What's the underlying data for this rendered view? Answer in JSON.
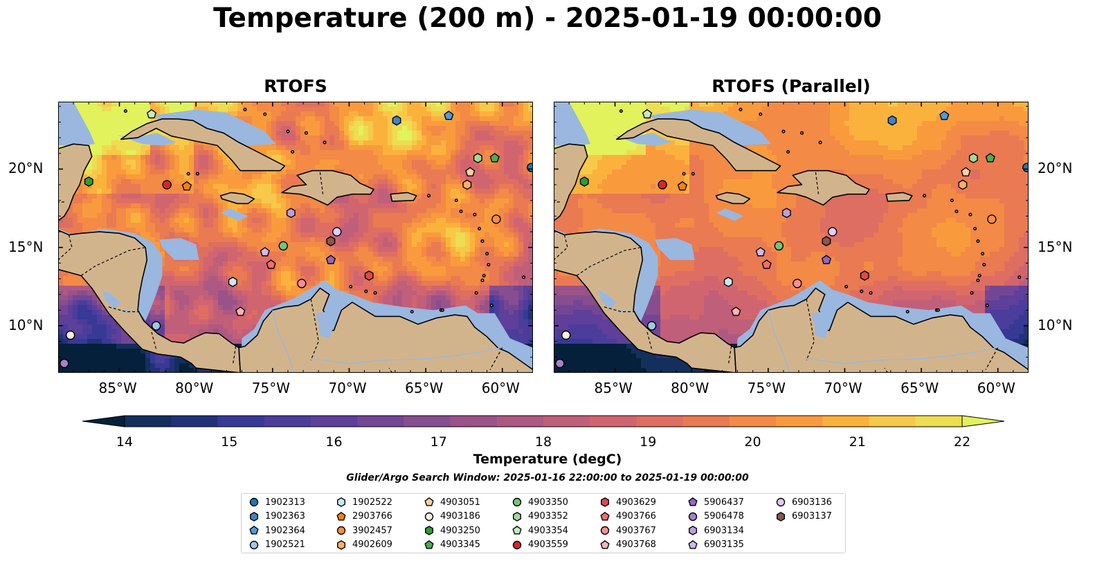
{
  "title": "Temperature (200 m) - 2025-01-19 00:00:00",
  "panels": [
    {
      "title": "RTOFS",
      "variant": "base"
    },
    {
      "title": "RTOFS (Parallel)",
      "variant": "parallel"
    }
  ],
  "x_ticks": [
    "85°W",
    "80°W",
    "75°W",
    "70°W",
    "65°W",
    "60°W"
  ],
  "y_ticks": [
    "20°N",
    "15°N",
    "10°N"
  ],
  "colorbar": {
    "label": "Temperature (degC)",
    "ticks": [
      "14",
      "15",
      "16",
      "17",
      "18",
      "19",
      "20",
      "21",
      "22"
    ],
    "min": 14,
    "max": 22,
    "extend": "both",
    "colormap": "thermal",
    "colors": [
      "#04203a",
      "#132f5c",
      "#22327a",
      "#363a95",
      "#4b3d9b",
      "#5e3f99",
      "#734695",
      "#864e8f",
      "#9a5289",
      "#ad5983",
      "#c05f79",
      "#d1656f",
      "#de6e62",
      "#e97a52",
      "#f38a45",
      "#f99b3d",
      "#fbb23d",
      "#f7c94a",
      "#eddd52",
      "#e2f25c"
    ]
  },
  "subtitle": "Glider/Argo Search Window: 2025-01-16 22:00:00 to 2025-01-19 00:00:00",
  "colors": {
    "land": "#d2b48c",
    "shelf": "#9ab7df",
    "deep_cold": "#04203a"
  },
  "floats": [
    {
      "id": "1902313",
      "marker": "circle",
      "color": "#1f77b4"
    },
    {
      "id": "1902363",
      "marker": "hexagon",
      "color": "#3d85c6"
    },
    {
      "id": "1902364",
      "marker": "pentagon",
      "color": "#4f9bd9"
    },
    {
      "id": "1902521",
      "marker": "circle",
      "color": "#9ecae1"
    },
    {
      "id": "1902522",
      "marker": "hexagon",
      "color": "#c7e9f1"
    },
    {
      "id": "2903766",
      "marker": "pentagon",
      "color": "#ff7f0e"
    },
    {
      "id": "3902457",
      "marker": "circle",
      "color": "#fd8d3c"
    },
    {
      "id": "4902609",
      "marker": "hexagon",
      "color": "#fdae6b"
    },
    {
      "id": "4903051",
      "marker": "pentagon",
      "color": "#fdd0a2"
    },
    {
      "id": "4903186",
      "marker": "circle",
      "color": "#feeddc"
    },
    {
      "id": "4903250",
      "marker": "hexagon",
      "color": "#2ca02c"
    },
    {
      "id": "4903345",
      "marker": "pentagon",
      "color": "#4daf4a"
    },
    {
      "id": "4903350",
      "marker": "circle",
      "color": "#74c476"
    },
    {
      "id": "4903352",
      "marker": "hexagon",
      "color": "#a1d99b"
    },
    {
      "id": "4903354",
      "marker": "pentagon",
      "color": "#c7e9c0"
    },
    {
      "id": "4903559",
      "marker": "circle",
      "color": "#d62728"
    },
    {
      "id": "4903629",
      "marker": "hexagon",
      "color": "#de4a4a"
    },
    {
      "id": "4903766",
      "marker": "pentagon",
      "color": "#ef6e6e"
    },
    {
      "id": "4903767",
      "marker": "circle",
      "color": "#f49090"
    },
    {
      "id": "4903768",
      "marker": "pentagon",
      "color": "#fbb4b4"
    },
    {
      "id": "5906437",
      "marker": "pentagon",
      "color": "#9467bd"
    },
    {
      "id": "5906478",
      "marker": "circle",
      "color": "#a781cc"
    },
    {
      "id": "6903134",
      "marker": "hexagon",
      "color": "#bca0dc"
    },
    {
      "id": "6903135",
      "marker": "pentagon",
      "color": "#d2b8ee"
    },
    {
      "id": "6903136",
      "marker": "circle",
      "color": "#e0cdf8"
    },
    {
      "id": "6903137",
      "marker": "hexagon",
      "color": "#8c564b"
    }
  ],
  "float_positions": [
    {
      "id": "1902313",
      "lon": -58.1,
      "lat": 20.1
    },
    {
      "id": "1902363",
      "lon": -66.9,
      "lat": 23.1
    },
    {
      "id": "1902364",
      "lon": -63.5,
      "lat": 23.4
    },
    {
      "id": "1902521",
      "lon": -82.6,
      "lat": 10.0
    },
    {
      "id": "1902522",
      "lon": -77.6,
      "lat": 12.8
    },
    {
      "id": "2903766",
      "lon": -80.6,
      "lat": 18.9
    },
    {
      "id": "3902457",
      "lon": -60.4,
      "lat": 16.8
    },
    {
      "id": "4902609",
      "lon": -62.3,
      "lat": 19.0
    },
    {
      "id": "4903051",
      "lon": -62.1,
      "lat": 19.8
    },
    {
      "id": "4903186",
      "lon": -88.2,
      "lat": 9.4
    },
    {
      "id": "4903250",
      "lon": -87.0,
      "lat": 19.2
    },
    {
      "id": "4903345",
      "lon": -60.5,
      "lat": 20.7
    },
    {
      "id": "4903350",
      "lon": -74.3,
      "lat": 15.1
    },
    {
      "id": "4903352",
      "lon": -61.6,
      "lat": 20.7
    },
    {
      "id": "4903354",
      "lon": -82.9,
      "lat": 23.5
    },
    {
      "id": "4903559",
      "lon": -81.9,
      "lat": 19.0
    },
    {
      "id": "4903629",
      "lon": -68.7,
      "lat": 13.2
    },
    {
      "id": "4903766",
      "lon": -75.1,
      "lat": 13.9
    },
    {
      "id": "4903767",
      "lon": -73.1,
      "lat": 12.7
    },
    {
      "id": "4903768",
      "lon": -77.1,
      "lat": 10.9
    },
    {
      "id": "5906437",
      "lon": -71.2,
      "lat": 14.2
    },
    {
      "id": "5906478",
      "lon": -88.6,
      "lat": 7.6
    },
    {
      "id": "6903134",
      "lon": -73.8,
      "lat": 17.2
    },
    {
      "id": "6903135",
      "lon": -75.5,
      "lat": 14.7
    },
    {
      "id": "6903136",
      "lon": -70.8,
      "lat": 16.0
    },
    {
      "id": "6903137",
      "lon": -71.2,
      "lat": 15.4
    }
  ]
}
